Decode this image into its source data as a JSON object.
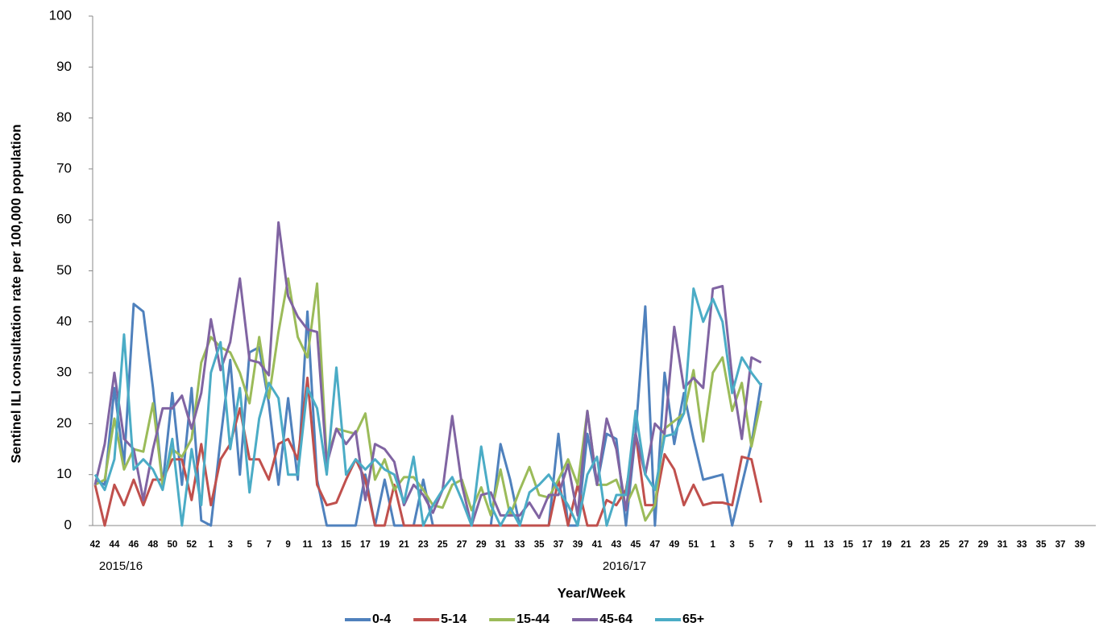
{
  "chart_data": {
    "type": "line",
    "y_label": "Sentinel ILI consultation rate per 100,000 population",
    "x_label": "Year/Week",
    "period_labels": [
      "2015/16",
      "2016/17"
    ],
    "ylim": [
      0,
      100
    ],
    "yticks": [
      0,
      10,
      20,
      30,
      40,
      50,
      60,
      70,
      80,
      90,
      100
    ],
    "grid": false,
    "legend": "bottom",
    "categories": [
      "42",
      null,
      "44",
      null,
      "46",
      null,
      "48",
      null,
      "50",
      null,
      "52",
      null,
      "1",
      null,
      "3",
      null,
      "5",
      null,
      "7",
      null,
      "9",
      null,
      "11",
      null,
      "13",
      null,
      "15",
      null,
      "17",
      null,
      "19",
      null,
      "21",
      null,
      "23",
      null,
      "25",
      null,
      "27",
      null,
      "29",
      null,
      "31",
      null,
      "33",
      null,
      "35",
      null,
      "37",
      null,
      "39",
      null,
      "41",
      null,
      "43",
      null,
      "45",
      null,
      "47",
      null,
      "49",
      null,
      "51",
      null,
      "1",
      null,
      "3",
      null,
      "5",
      null,
      "7",
      null,
      "9",
      null,
      "11",
      null,
      "13",
      null,
      "15",
      null,
      "17",
      null,
      "19",
      null,
      "21",
      null,
      "23",
      null,
      "25",
      null,
      "27",
      null,
      "29",
      null,
      "31",
      null,
      "33",
      null,
      "35",
      null,
      "37",
      null,
      "39"
    ],
    "series": [
      {
        "name": "0-4",
        "color": "#4f81bd",
        "values": [
          9,
          8,
          27,
          12,
          43.5,
          42,
          27,
          8,
          26,
          8,
          27,
          1,
          0,
          17,
          32.5,
          10,
          34,
          35,
          24,
          8,
          25,
          9,
          42,
          9,
          0,
          0,
          0,
          0,
          10,
          0,
          9,
          0,
          0,
          0,
          9,
          0,
          0,
          0,
          0,
          0,
          0,
          0,
          16,
          9,
          0,
          0,
          0,
          0,
          18,
          0,
          0,
          18,
          8,
          18,
          17,
          0,
          18,
          43,
          0,
          30,
          16,
          26,
          17,
          9,
          9.5,
          10,
          0,
          8,
          16,
          28,
          null,
          null,
          null,
          null,
          null,
          null,
          null,
          null,
          null,
          null,
          null,
          null,
          null,
          null,
          null,
          null,
          null,
          null,
          null,
          null,
          null,
          null,
          null,
          null,
          null,
          null,
          null,
          null,
          null,
          null,
          null,
          null,
          null
        ]
      },
      {
        "name": "5-14",
        "color": "#c0504d",
        "values": [
          8,
          0,
          8,
          4,
          9,
          4,
          9,
          9,
          13,
          13,
          5,
          16,
          4,
          13,
          16,
          23,
          13,
          13,
          9,
          16,
          17,
          13,
          29,
          8,
          4,
          4.5,
          9,
          13,
          9,
          0,
          0,
          8,
          0,
          0,
          0,
          0,
          0,
          0,
          0,
          0,
          0,
          0,
          0,
          0,
          0,
          0,
          0,
          0,
          9,
          0,
          8,
          0,
          0,
          5,
          4,
          7,
          18,
          4,
          4,
          14,
          11,
          4,
          8,
          4,
          4.5,
          4.5,
          4,
          13.5,
          13,
          4.5,
          null,
          null,
          null,
          null,
          null,
          null,
          null,
          null,
          null,
          null,
          null,
          null,
          null,
          null,
          null,
          null,
          null,
          null,
          null,
          null,
          null,
          null,
          null,
          null,
          null,
          null,
          null,
          null,
          null,
          null,
          null,
          null,
          null
        ]
      },
      {
        "name": "15-44",
        "color": "#9bbb59",
        "values": [
          8,
          9,
          21,
          11,
          15,
          14.5,
          24,
          8,
          15,
          13.5,
          17,
          32,
          37,
          35,
          34,
          30,
          24,
          37,
          25,
          38,
          48.5,
          37,
          33,
          47.5,
          13,
          19,
          18.5,
          18,
          22,
          9,
          13,
          7,
          9.5,
          9.5,
          7,
          4,
          3.5,
          8,
          9,
          3,
          7.5,
          2,
          11,
          2,
          7,
          11.5,
          6,
          5.5,
          9,
          13,
          8,
          22.5,
          8,
          8,
          9,
          4,
          8,
          1,
          4,
          19,
          20.5,
          22,
          30.5,
          16.5,
          30,
          33,
          22.5,
          28,
          15.5,
          24.5,
          null,
          null,
          null,
          null,
          null,
          null,
          null,
          null,
          null,
          null,
          null,
          null,
          null,
          null,
          null,
          null,
          null,
          null,
          null,
          null,
          null,
          null,
          null,
          null,
          null,
          null,
          null,
          null,
          null,
          null,
          null,
          null,
          null
        ]
      },
      {
        "name": "45-64",
        "color": "#8064a2",
        "values": [
          8,
          16,
          30,
          17,
          15,
          5,
          15,
          23,
          23,
          25.5,
          19,
          26,
          40.5,
          30.5,
          36,
          48.5,
          32.5,
          32,
          29.5,
          59.5,
          45,
          41,
          38.5,
          38,
          12,
          19,
          16,
          18.5,
          5,
          16,
          15,
          12.5,
          4,
          8,
          6,
          2.5,
          7,
          21.5,
          8,
          0,
          6,
          6.5,
          2,
          2,
          2,
          4.5,
          1.5,
          6,
          6,
          12,
          2,
          22.5,
          8,
          21,
          15,
          3,
          18,
          10,
          20,
          18,
          39,
          27,
          29,
          27,
          46.5,
          47,
          29,
          17,
          33,
          32,
          null,
          null,
          null,
          null,
          null,
          null,
          null,
          null,
          null,
          null,
          null,
          null,
          null,
          null,
          null,
          null,
          null,
          null,
          null,
          null,
          null,
          null,
          null,
          null,
          null,
          null,
          null,
          null,
          null,
          null,
          null,
          null,
          null
        ]
      },
      {
        "name": "65+",
        "color": "#4bacc6",
        "values": [
          10,
          7,
          13,
          37.5,
          11,
          13,
          11,
          7,
          17,
          0,
          15,
          4,
          30,
          36,
          15,
          27,
          6.5,
          21,
          28,
          25,
          10,
          10,
          27,
          23,
          10,
          31,
          10,
          13,
          11,
          13,
          11,
          10,
          4.5,
          13.5,
          0,
          4,
          7,
          9.5,
          5,
          0,
          15.5,
          4,
          0,
          3.5,
          0,
          6.5,
          8,
          10,
          7,
          4,
          0,
          10,
          13.5,
          0,
          6,
          6,
          22.5,
          10,
          7,
          17.5,
          18,
          22,
          46.5,
          40,
          44.5,
          40,
          26,
          33,
          30,
          27.5,
          null,
          null,
          null,
          null,
          null,
          null,
          null,
          null,
          null,
          null,
          null,
          null,
          null,
          null,
          null,
          null,
          null,
          null,
          null,
          null,
          null,
          null,
          null,
          null,
          null,
          null,
          null,
          null,
          null,
          null,
          null,
          null,
          null
        ]
      }
    ]
  }
}
